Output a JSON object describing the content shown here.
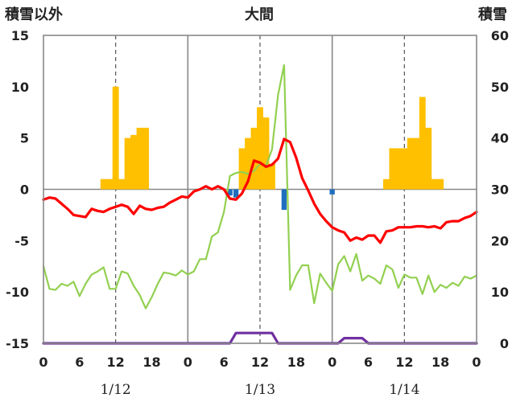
{
  "chart_data": {
    "type": "line",
    "title": "大間",
    "ylabel_left": "積雪以外",
    "ylabel_right": "積雪",
    "ylim_left": [
      -15,
      15
    ],
    "ylim_right": [
      0,
      60
    ],
    "yticks_left": [
      "15",
      "10",
      "5",
      "0",
      "-5",
      "-10",
      "-15"
    ],
    "yticks_right": [
      "60",
      "50",
      "40",
      "30",
      "20",
      "10",
      "0"
    ],
    "xticks": [
      "0",
      "6",
      "12",
      "18",
      "0",
      "6",
      "12",
      "18",
      "0",
      "6",
      "12",
      "18",
      "0"
    ],
    "date_labels": [
      "1/12",
      "1/13",
      "1/14"
    ],
    "x_range_hours": [
      0,
      72
    ],
    "grid": "dashed verticals at 12h, solid verticals at day boundaries",
    "series": [
      {
        "kind": "bar_precip_left_axis",
        "color": "#FFC000",
        "hours": [
          10,
          11,
          12,
          13,
          14,
          15,
          16,
          17,
          33,
          34,
          35,
          36,
          37,
          38,
          57,
          58,
          59,
          60,
          61,
          62,
          63,
          64,
          65,
          66
        ],
        "values": [
          1,
          1,
          10,
          1,
          5,
          5.3,
          6,
          6,
          4,
          5,
          6,
          8,
          7,
          2.5,
          1,
          4,
          4,
          4,
          5,
          5,
          9,
          6,
          1,
          1
        ]
      },
      {
        "kind": "bar_blue_left_axis",
        "color": "#1F6FBF",
        "hours": [
          31,
          32,
          40,
          48
        ],
        "values": [
          -0.6,
          -0.8,
          -2.0,
          -0.5
        ]
      },
      {
        "kind": "line_temperature_left_axis",
        "color": "#FF0000",
        "hours": [
          0,
          1,
          2,
          3,
          4,
          5,
          6,
          7,
          8,
          9,
          10,
          11,
          12,
          13,
          14,
          15,
          16,
          17,
          18,
          19,
          20,
          21,
          22,
          23,
          24,
          25,
          26,
          27,
          28,
          29,
          30,
          31,
          32,
          33,
          34,
          35,
          36,
          37,
          38,
          39,
          40,
          41,
          42,
          43,
          44,
          45,
          46,
          47,
          48,
          49,
          50,
          51,
          52,
          53,
          54,
          55,
          56,
          57,
          58,
          59,
          60,
          61,
          62,
          63,
          64,
          65,
          66,
          67,
          68,
          69,
          70,
          71,
          72
        ],
        "values": [
          -1.0,
          -0.8,
          -0.9,
          -1.4,
          -1.9,
          -2.5,
          -2.6,
          -2.7,
          -1.9,
          -2.1,
          -2.2,
          -1.9,
          -1.7,
          -1.5,
          -1.7,
          -2.4,
          -1.6,
          -1.9,
          -2.0,
          -1.8,
          -1.7,
          -1.3,
          -1.0,
          -0.7,
          -0.8,
          -0.2,
          0.0,
          0.3,
          0.0,
          0.3,
          0.0,
          -0.9,
          -1.0,
          -0.4,
          0.8,
          2.8,
          2.6,
          2.2,
          2.4,
          3.0,
          4.9,
          4.6,
          3.1,
          1.1,
          -0.1,
          -1.4,
          -2.4,
          -3.1,
          -3.7,
          -4.0,
          -4.2,
          -5.0,
          -4.7,
          -4.9,
          -4.5,
          -4.5,
          -5.2,
          -4.1,
          -4.0,
          -3.7,
          -3.7,
          -3.7,
          -3.6,
          -3.6,
          -3.7,
          -3.6,
          -3.8,
          -3.2,
          -3.1,
          -3.1,
          -2.8,
          -2.6,
          -2.2
        ]
      },
      {
        "kind": "line_green_left_axis",
        "color": "#92D050",
        "hours": [
          0,
          1,
          2,
          3,
          4,
          5,
          6,
          7,
          8,
          9,
          10,
          11,
          12,
          13,
          14,
          15,
          16,
          17,
          18,
          19,
          20,
          21,
          22,
          23,
          24,
          25,
          26,
          27,
          28,
          29,
          30,
          31,
          32,
          33,
          34,
          35,
          36,
          37,
          38,
          39,
          40,
          41,
          42,
          43,
          44,
          45,
          46,
          47,
          48,
          49,
          50,
          51,
          52,
          53,
          54,
          55,
          56,
          57,
          58,
          59,
          60,
          61,
          62,
          63,
          64,
          65,
          66,
          67,
          68,
          69,
          70,
          71,
          72
        ],
        "values": [
          -7.5,
          -9.7,
          -9.8,
          -9.2,
          -9.4,
          -9.0,
          -10.4,
          -9.2,
          -8.3,
          -8.0,
          -7.6,
          -9.7,
          -9.7,
          -8.0,
          -8.2,
          -9.4,
          -10.3,
          -11.6,
          -10.5,
          -9.2,
          -8.1,
          -8.2,
          -8.4,
          -7.9,
          -8.3,
          -8.0,
          -6.8,
          -6.8,
          -4.6,
          -4.2,
          -2.2,
          1.3,
          1.6,
          1.7,
          1.5,
          1.8,
          2.5,
          2.3,
          3.9,
          9.2,
          12.1,
          -9.8,
          -8.4,
          -7.4,
          -7.4,
          -11.1,
          -8.2,
          -9.1,
          -9.9,
          -7.3,
          -6.5,
          -8.0,
          -6.3,
          -8.9,
          -8.4,
          -8.7,
          -9.2,
          -7.4,
          -7.8,
          -9.6,
          -8.3,
          -8.6,
          -8.6,
          -10.2,
          -8.4,
          -10.0,
          -9.3,
          -9.6,
          -9.1,
          -9.4,
          -8.5,
          -8.7,
          -8.4
        ]
      },
      {
        "kind": "line_snow_depth_right_axis",
        "color": "#7030A0",
        "hours": [
          0,
          31,
          32,
          38,
          39,
          49,
          50,
          53,
          54,
          72
        ],
        "values": [
          0,
          0,
          2,
          2,
          0,
          0,
          1,
          1,
          0,
          0
        ]
      }
    ]
  }
}
